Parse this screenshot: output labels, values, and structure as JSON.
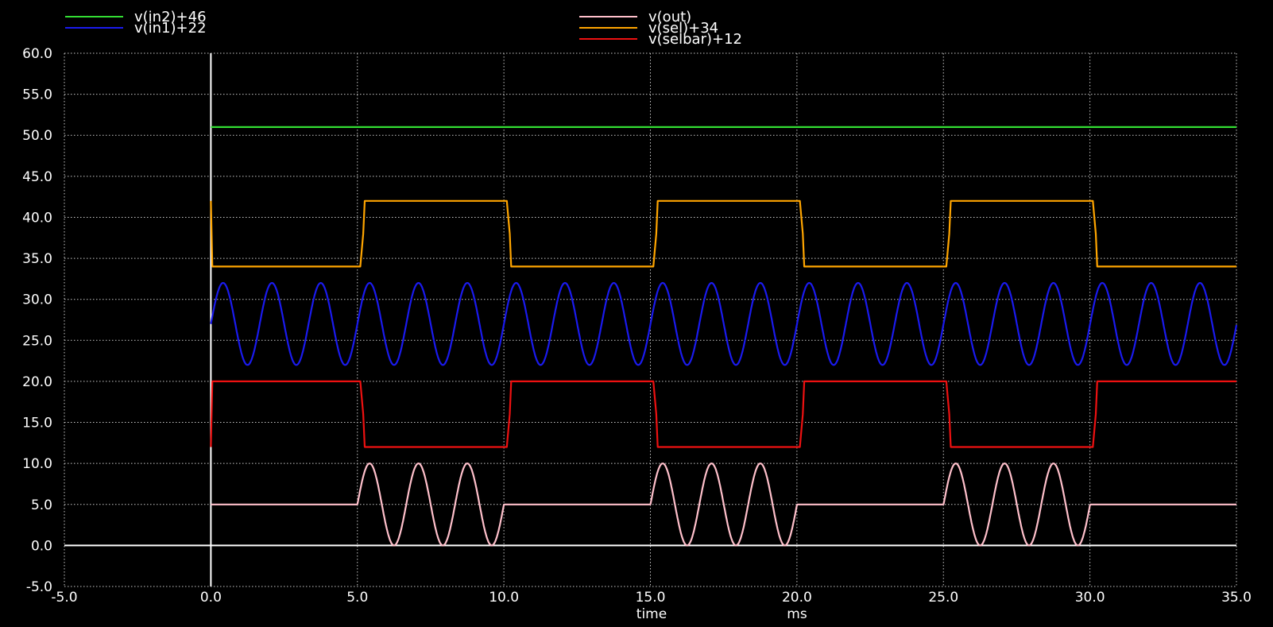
{
  "chart_data": {
    "type": "line",
    "background": "#000000",
    "grid": true,
    "xlim": [
      -5.0,
      35.0
    ],
    "ylim": [
      -5.0,
      60.0
    ],
    "x_ticks": [
      "-5.0",
      "0.0",
      "5.0",
      "10.0",
      "15.0",
      "20.0",
      "25.0",
      "30.0",
      "35.0"
    ],
    "y_ticks": [
      "60.0",
      "55.0",
      "50.0",
      "45.0",
      "40.0",
      "35.0",
      "30.0",
      "25.0",
      "20.0",
      "15.0",
      "10.0",
      "5.0",
      "0.0",
      "-5.0"
    ],
    "xlabel": "time",
    "xunit": "ms",
    "legend_left": [
      "v(in2)+46",
      "v(in1)+22"
    ],
    "legend_right": [
      "v(out)",
      "v(sel)+34",
      "v(selbar)+12"
    ],
    "series": [
      {
        "name": "v(in2)+46",
        "color": "#33dd33",
        "kind": "constant",
        "level": 51.0,
        "x_range": [
          0,
          35
        ]
      },
      {
        "name": "v(in1)+22",
        "color": "#1a1aee",
        "kind": "sine",
        "offset": 27.0,
        "amplitude": 5.0,
        "period_ms": 1.667,
        "phase_start": 0.0,
        "x_range": [
          0,
          35
        ]
      },
      {
        "name": "v(out)",
        "color": "#ffc0cb",
        "kind": "mux_output",
        "idle_level": 5.0,
        "active_windows": [
          [
            5,
            10
          ],
          [
            15,
            20
          ],
          [
            25,
            30
          ]
        ]
      },
      {
        "name": "v(sel)+34",
        "color": "#ffa500",
        "kind": "square",
        "low": 34.0,
        "high": 42.0,
        "high_windows": [
          [
            5,
            10
          ],
          [
            15,
            20
          ],
          [
            25,
            30
          ]
        ],
        "x_range": [
          0,
          35
        ]
      },
      {
        "name": "v(selbar)+12",
        "color": "#ee1111",
        "kind": "square",
        "low": 12.0,
        "high": 20.0,
        "high_windows": [
          [
            0,
            5
          ],
          [
            10,
            15
          ],
          [
            20,
            25
          ],
          [
            30,
            35
          ]
        ],
        "x_range": [
          0,
          35
        ]
      }
    ]
  }
}
